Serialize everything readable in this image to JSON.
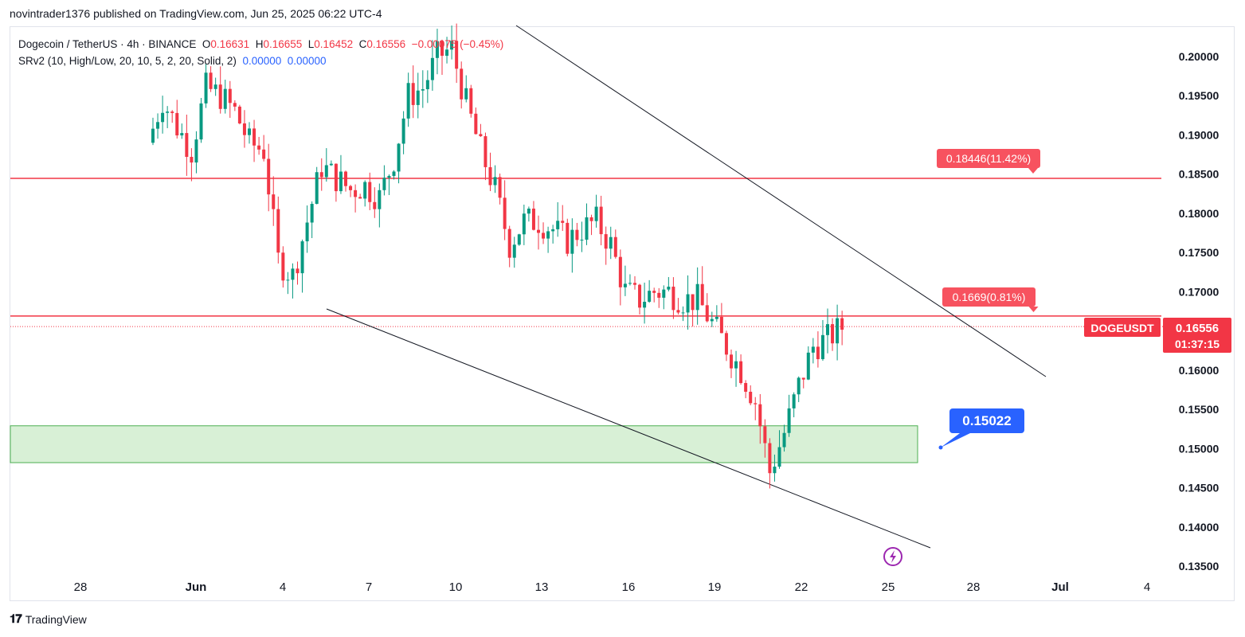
{
  "header": {
    "publish_line": "novintrader1376 published on TradingView.com, Jun 25, 2025 06:22 UTC-4"
  },
  "legend": {
    "symbol": "Dogecoin / TetherUS · 4h · BINANCE",
    "o_label": "O",
    "o_value": "0.16631",
    "h_label": "H",
    "h_value": "0.16655",
    "l_label": "L",
    "l_value": "0.16452",
    "c_label": "C",
    "c_value": "0.16556",
    "change": "−0.00075 (−0.45%)",
    "indicator": "SRv2 (10, High/Low, 20, 10, 5, 2, 20, Solid, 2)",
    "ind_val1": "0.00000",
    "ind_val2": "0.00000"
  },
  "footer": {
    "brand": "TradingView"
  },
  "colors": {
    "up": "#089981",
    "down": "#f23645",
    "support_fill": "#d8f0d6",
    "support_stroke": "#4caf50",
    "level_line": "#f23645",
    "trend_line": "#131722",
    "callout_blue": "#2962ff"
  },
  "chart_data": {
    "type": "candlestick",
    "symbol": "DOGEUSDT",
    "timeframe": "4h",
    "ylim": [
      0.135,
      0.2035
    ],
    "y_ticks": [
      "0.20000",
      "0.19500",
      "0.19000",
      "0.18500",
      "0.18000",
      "0.17500",
      "0.17000",
      "0.16500",
      "0.16000",
      "0.15500",
      "0.15000",
      "0.14500",
      "0.14000",
      "0.13500"
    ],
    "x_ticks": [
      "28",
      "Jun",
      "4",
      "7",
      "10",
      "13",
      "16",
      "19",
      "22",
      "25",
      "28",
      "Jul",
      "4"
    ],
    "last_price_label": "DOGEUSDT",
    "last_price": 0.16556,
    "countdown": "01:37:15",
    "levels": [
      {
        "price": 0.18446,
        "label": "0.18446(11.42%)"
      },
      {
        "price": 0.1669,
        "label": "0.1669(0.81%)"
      }
    ],
    "support_zone": {
      "low": 0.1482,
      "high": 0.1529
    },
    "target_callout": {
      "price": 0.15022,
      "label": "0.15022"
    },
    "trendlines": [
      {
        "from_date": "2025-06-11",
        "from_price": 0.2055,
        "to_date": "2025-06-27",
        "to_price": 0.1595
      },
      {
        "from_date": "2025-06-05",
        "from_price": 0.1681,
        "to_date": "2025-06-26",
        "to_price": 0.1376
      }
    ],
    "trend_anchor_points": [
      {
        "price": 0.2055
      },
      {
        "price": 0.1595
      },
      {
        "price": 0.1681
      },
      {
        "price": 0.1376
      }
    ],
    "day_points": [
      [
        "2025-06-01",
        0.189
      ],
      [
        "2025-06-01",
        0.1945
      ],
      [
        "2025-06-02",
        0.191
      ],
      [
        "2025-06-02",
        0.188
      ],
      [
        "2025-06-03",
        0.196
      ],
      [
        "2025-06-03",
        0.195
      ],
      [
        "2025-06-04",
        0.193
      ],
      [
        "2025-06-04",
        0.189
      ],
      [
        "2025-06-05",
        0.188
      ],
      [
        "2025-06-05",
        0.174
      ],
      [
        "2025-06-06",
        0.172
      ],
      [
        "2025-06-06",
        0.179
      ],
      [
        "2025-06-07",
        0.186
      ],
      [
        "2025-06-07",
        0.1845
      ],
      [
        "2025-06-08",
        0.183
      ],
      [
        "2025-06-08",
        0.1835
      ],
      [
        "2025-06-09",
        0.182
      ],
      [
        "2025-06-09",
        0.187
      ],
      [
        "2025-06-10",
        0.195
      ],
      [
        "2025-06-10",
        0.196
      ],
      [
        "2025-06-11",
        0.2
      ],
      [
        "2025-06-11",
        0.201
      ],
      [
        "2025-06-12",
        0.194
      ],
      [
        "2025-06-12",
        0.188
      ],
      [
        "2025-06-13",
        0.183
      ],
      [
        "2025-06-13",
        0.176
      ],
      [
        "2025-06-14",
        0.179
      ],
      [
        "2025-06-14",
        0.179
      ],
      [
        "2025-06-15",
        0.178
      ],
      [
        "2025-06-15",
        0.1765
      ],
      [
        "2025-06-16",
        0.178
      ],
      [
        "2025-06-16",
        0.179
      ],
      [
        "2025-06-17",
        0.176
      ],
      [
        "2025-06-17",
        0.17
      ],
      [
        "2025-06-18",
        0.169
      ],
      [
        "2025-06-18",
        0.17
      ],
      [
        "2025-06-19",
        0.17
      ],
      [
        "2025-06-19",
        0.169
      ],
      [
        "2025-06-20",
        0.169
      ],
      [
        "2025-06-20",
        0.166
      ],
      [
        "2025-06-21",
        0.163
      ],
      [
        "2025-06-21",
        0.16
      ],
      [
        "2025-06-22",
        0.156
      ],
      [
        "2025-06-22",
        0.147
      ],
      [
        "2025-06-23",
        0.152
      ],
      [
        "2025-06-23",
        0.158
      ],
      [
        "2025-06-24",
        0.163
      ],
      [
        "2025-06-24",
        0.164
      ],
      [
        "2025-06-25",
        0.1655
      ]
    ]
  }
}
